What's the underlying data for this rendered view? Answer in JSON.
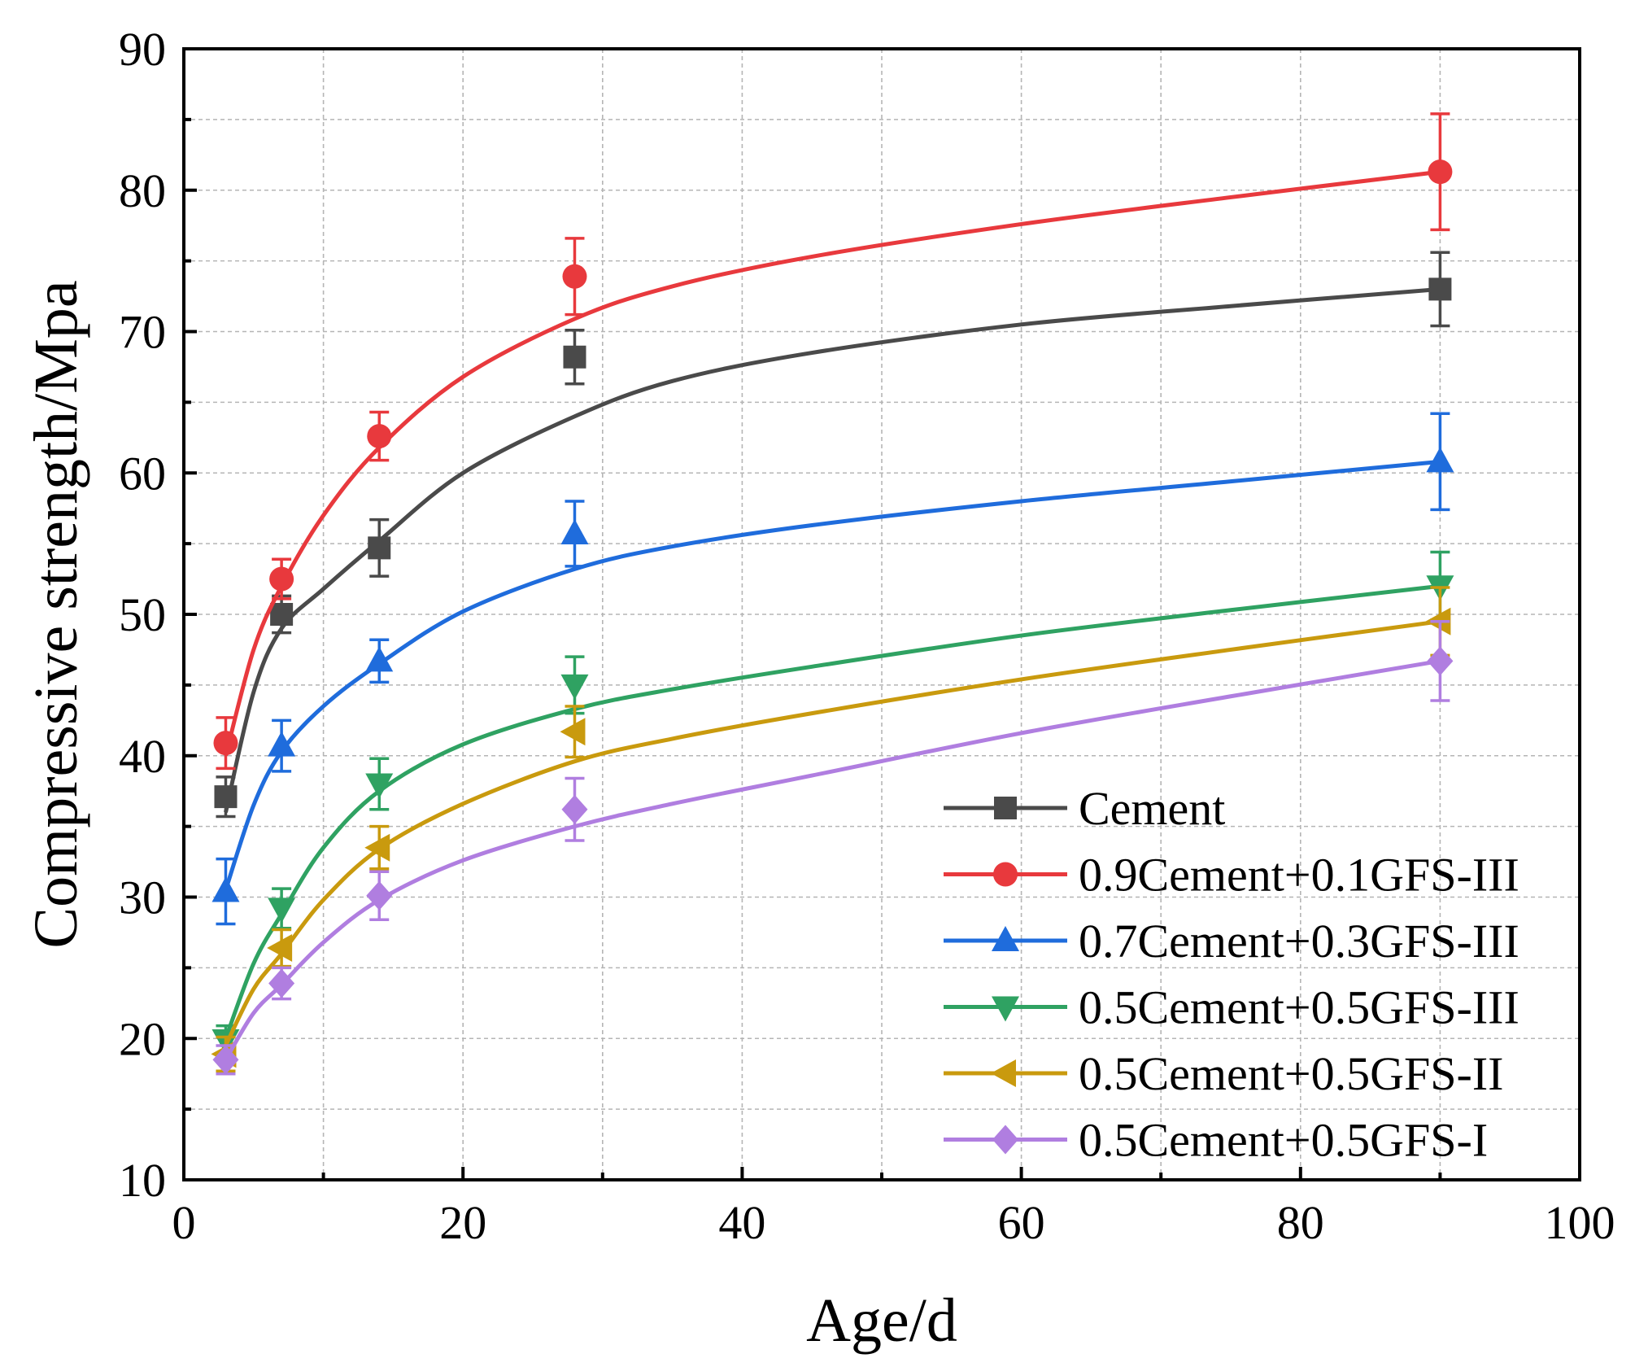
{
  "chart_data": {
    "type": "line",
    "title": "",
    "xlabel": "Age/d",
    "ylabel": "Compressive strength/Mpa",
    "xlim": [
      0,
      100
    ],
    "ylim": [
      10,
      90
    ],
    "xticks": [
      0,
      20,
      40,
      60,
      80,
      100
    ],
    "xtick_labels": [
      "0",
      "20",
      "40",
      "60",
      "80",
      "100"
    ],
    "yticks": [
      10,
      20,
      30,
      40,
      50,
      60,
      70,
      80,
      90
    ],
    "ytick_labels": [
      "10",
      "20",
      "30",
      "40",
      "50",
      "60",
      "70",
      "80",
      "90"
    ],
    "grid": true,
    "legend_position": "bottom-right",
    "x": [
      3,
      7,
      14,
      28,
      90
    ],
    "series": [
      {
        "name": "Cement",
        "color": "#4a4a4a",
        "marker": "square",
        "values": [
          37.1,
          50.0,
          54.7,
          68.2,
          73.0
        ],
        "errors": [
          1.4,
          1.3,
          2.0,
          1.9,
          2.6
        ],
        "fit_x": [
          3.0,
          5.0,
          7.0,
          10.0,
          14.0,
          20.0,
          28.0,
          35.0,
          45.0,
          60.0,
          75.0,
          90.0
        ],
        "fit_y": [
          36.0,
          44.5,
          49.0,
          51.8,
          55.2,
          60.0,
          64.0,
          66.5,
          68.5,
          70.5,
          71.8,
          73.0
        ]
      },
      {
        "name": "0.9Cement+0.1GFS-III",
        "color": "#e8393d",
        "marker": "circle",
        "values": [
          40.9,
          52.5,
          62.6,
          73.9,
          81.3
        ],
        "errors": [
          1.8,
          1.4,
          1.7,
          2.7,
          4.1
        ],
        "fit_x": [
          3.0,
          5.0,
          7.0,
          10.0,
          14.0,
          20.0,
          28.0,
          35.0,
          45.0,
          60.0,
          75.0,
          90.0
        ],
        "fit_y": [
          40.0,
          47.5,
          52.0,
          57.0,
          61.8,
          66.8,
          70.9,
          73.2,
          75.3,
          77.6,
          79.5,
          81.3
        ]
      },
      {
        "name": "0.7Cement+0.3GFS-III",
        "color": "#1f6cdc",
        "marker": "triangle-up",
        "values": [
          30.4,
          40.7,
          46.7,
          55.7,
          60.8
        ],
        "errors": [
          2.3,
          1.8,
          1.5,
          2.3,
          3.4
        ],
        "fit_x": [
          3.0,
          5.0,
          7.0,
          10.0,
          14.0,
          20.0,
          28.0,
          35.0,
          45.0,
          60.0,
          75.0,
          90.0
        ],
        "fit_y": [
          30.5,
          36.5,
          40.3,
          43.5,
          46.5,
          50.2,
          53.2,
          54.8,
          56.3,
          58.0,
          59.4,
          60.8
        ]
      },
      {
        "name": "0.5Cement+0.5GFS-III",
        "color": "#2fa262",
        "marker": "triangle-down",
        "values": [
          19.9,
          29.2,
          38.0,
          45.0,
          52.0
        ],
        "errors": [
          1.0,
          1.4,
          1.8,
          2.0,
          2.4
        ],
        "fit_x": [
          3.0,
          5.0,
          7.0,
          10.0,
          14.0,
          20.0,
          28.0,
          35.0,
          45.0,
          60.0,
          75.0,
          90.0
        ],
        "fit_y": [
          20.0,
          25.3,
          28.8,
          33.5,
          37.5,
          40.8,
          43.3,
          44.7,
          46.3,
          48.5,
          50.3,
          52.0
        ]
      },
      {
        "name": "0.5Cement+0.5GFS-II",
        "color": "#c99a0e",
        "marker": "triangle-left",
        "values": [
          18.9,
          26.4,
          33.5,
          41.7,
          49.5
        ],
        "errors": [
          1.2,
          1.3,
          1.5,
          1.8,
          2.4
        ],
        "fit_x": [
          3.0,
          5.0,
          7.0,
          10.0,
          14.0,
          20.0,
          28.0,
          35.0,
          45.0,
          60.0,
          75.0,
          90.0
        ],
        "fit_y": [
          19.5,
          23.5,
          26.0,
          29.8,
          33.4,
          36.6,
          39.6,
          41.2,
          43.0,
          45.4,
          47.5,
          49.5
        ]
      },
      {
        "name": "0.5Cement+0.5GFS-I",
        "color": "#b07ee0",
        "marker": "diamond",
        "values": [
          18.5,
          23.9,
          30.1,
          36.2,
          46.7
        ],
        "errors": [
          1.0,
          1.1,
          1.7,
          2.2,
          2.8
        ],
        "fit_x": [
          3.0,
          5.0,
          7.0,
          10.0,
          14.0,
          20.0,
          28.0,
          35.0,
          45.0,
          60.0,
          75.0,
          90.0
        ],
        "fit_y": [
          18.5,
          21.8,
          23.8,
          26.8,
          29.8,
          32.6,
          35.0,
          36.6,
          38.6,
          41.6,
          44.2,
          46.7
        ]
      }
    ]
  }
}
